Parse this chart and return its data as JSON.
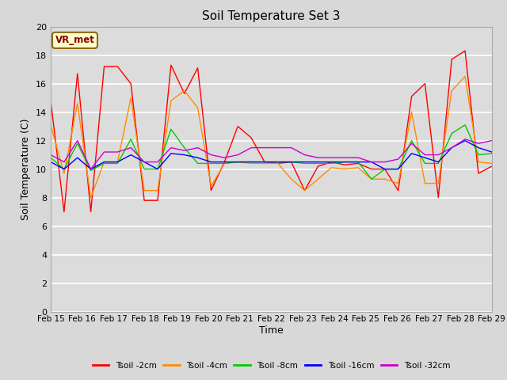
{
  "title": "Soil Temperature Set 3",
  "xlabel": "Time",
  "ylabel": "Soil Temperature (C)",
  "annotation": "VR_met",
  "ylim": [
    0,
    20
  ],
  "yticks": [
    0,
    2,
    4,
    6,
    8,
    10,
    12,
    14,
    16,
    18,
    20
  ],
  "xtick_labels": [
    "Feb 15",
    "Feb 16",
    "Feb 17",
    "Feb 18",
    "Feb 19",
    "Feb 20",
    "Feb 21",
    "Feb 22",
    "Feb 23",
    "Feb 24",
    "Feb 25",
    "Feb 26",
    "Feb 27",
    "Feb 28",
    "Feb 29"
  ],
  "fig_bg": "#d8d8d8",
  "plot_bg": "#dcdcdc",
  "series": [
    {
      "label": "Tsoil -2cm",
      "color": "#ff0000",
      "values": [
        14.8,
        7.0,
        16.7,
        7.0,
        17.2,
        17.2,
        16.0,
        7.8,
        7.8,
        17.3,
        15.3,
        17.1,
        8.5,
        10.5,
        13.0,
        12.2,
        10.5,
        10.4,
        10.5,
        8.5,
        10.2,
        10.5,
        10.3,
        10.4,
        10.0,
        10.0,
        8.5,
        15.1,
        16.0,
        8.0,
        17.7,
        18.3,
        9.7,
        10.2
      ]
    },
    {
      "label": "Tsoil -4cm",
      "color": "#ff8c00",
      "values": [
        13.1,
        9.7,
        14.6,
        8.0,
        10.5,
        10.5,
        15.0,
        8.5,
        8.5,
        14.8,
        15.5,
        14.3,
        8.8,
        10.4,
        10.5,
        10.4,
        10.4,
        10.4,
        9.3,
        8.5,
        9.3,
        10.1,
        10.0,
        10.1,
        9.3,
        9.3,
        9.0,
        14.0,
        9.0,
        9.0,
        15.5,
        16.5,
        10.5,
        10.4
      ]
    },
    {
      "label": "Tsoil -8cm",
      "color": "#00cc00",
      "values": [
        10.8,
        10.0,
        11.8,
        9.9,
        10.4,
        10.4,
        12.1,
        10.0,
        10.0,
        12.8,
        11.5,
        10.4,
        10.4,
        10.4,
        10.5,
        10.5,
        10.5,
        10.5,
        10.5,
        10.4,
        10.4,
        10.4,
        10.5,
        10.5,
        9.3,
        10.0,
        10.0,
        12.0,
        10.4,
        10.4,
        12.5,
        13.1,
        11.0,
        11.1
      ]
    },
    {
      "label": "Tsoil -16cm",
      "color": "#0000ff",
      "values": [
        10.5,
        10.0,
        10.8,
        10.0,
        10.5,
        10.5,
        11.0,
        10.5,
        10.0,
        11.1,
        11.0,
        10.8,
        10.5,
        10.5,
        10.5,
        10.5,
        10.5,
        10.5,
        10.5,
        10.5,
        10.5,
        10.5,
        10.5,
        10.5,
        10.5,
        10.0,
        10.0,
        11.1,
        10.8,
        10.5,
        11.5,
        12.0,
        11.5,
        11.2
      ]
    },
    {
      "label": "Tsoil -32cm",
      "color": "#cc00cc",
      "values": [
        11.0,
        10.5,
        12.0,
        10.0,
        11.2,
        11.2,
        11.5,
        10.5,
        10.5,
        11.5,
        11.3,
        11.5,
        11.0,
        10.8,
        11.0,
        11.5,
        11.5,
        11.5,
        11.5,
        11.0,
        10.8,
        10.8,
        10.8,
        10.8,
        10.5,
        10.5,
        10.7,
        11.8,
        11.0,
        11.0,
        11.5,
        12.1,
        11.8,
        12.0
      ]
    }
  ]
}
